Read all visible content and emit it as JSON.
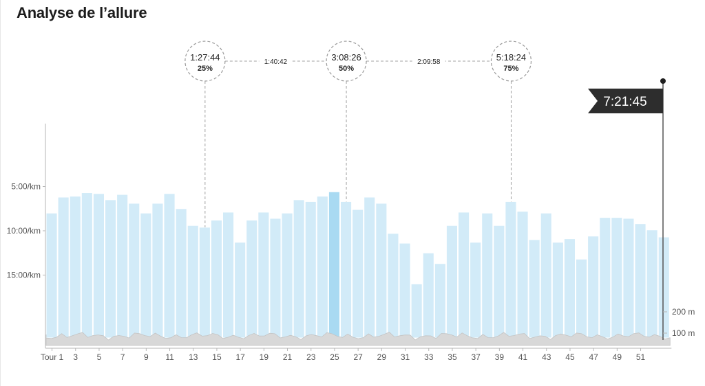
{
  "page": {
    "title": "Analyse de l’allure"
  },
  "chart_data": {
    "type": "bar",
    "title": "Analyse de l’allure",
    "ylabel": "",
    "xlabel": "",
    "y_ticks": [
      "5:00/km",
      "10:00/km",
      "15:00/km"
    ],
    "y_tick_values_min_per_km": [
      5,
      10,
      15
    ],
    "y_axis_inverted": true,
    "elevation_ticks": [
      "200 m",
      "100 m"
    ],
    "elevation_tick_values_m": [
      200,
      100
    ],
    "x_tick_labels": [
      "Tour 1",
      "3",
      "5",
      "7",
      "9",
      "11",
      "13",
      "15",
      "17",
      "19",
      "21",
      "23",
      "25",
      "27",
      "29",
      "31",
      "33",
      "35",
      "37",
      "39",
      "41",
      "43",
      "45",
      "47",
      "49",
      "51"
    ],
    "categories": [
      1,
      2,
      3,
      4,
      5,
      6,
      7,
      8,
      9,
      10,
      11,
      12,
      13,
      14,
      15,
      16,
      17,
      18,
      19,
      20,
      21,
      22,
      23,
      24,
      25,
      26,
      27,
      28,
      29,
      30,
      31,
      32,
      33,
      34,
      35,
      36,
      37,
      38,
      39,
      40,
      41,
      42,
      43,
      44,
      45,
      46,
      47,
      48,
      49,
      50,
      51,
      52,
      53
    ],
    "pace_min_per_km": [
      8.0,
      6.2,
      6.1,
      5.7,
      5.8,
      6.5,
      5.9,
      6.9,
      8.0,
      6.9,
      5.8,
      7.5,
      9.4,
      9.6,
      8.8,
      7.9,
      11.3,
      8.8,
      7.9,
      8.6,
      8.0,
      6.5,
      6.7,
      6.1,
      5.6,
      6.7,
      7.6,
      6.2,
      6.9,
      10.3,
      11.4,
      16.0,
      12.5,
      13.7,
      9.4,
      7.9,
      11.3,
      8.0,
      9.4,
      6.7,
      7.8,
      11.0,
      8.0,
      11.3,
      10.9,
      13.2,
      10.6,
      8.5,
      8.5,
      8.6,
      9.2,
      9.9,
      10.7
    ],
    "highlighted_lap": 25,
    "grid": false,
    "milestones": [
      {
        "time": "1:27:44",
        "percent": "25%",
        "lap": 14
      },
      {
        "time": "3:08:26",
        "percent": "50%",
        "lap": 26
      },
      {
        "time": "5:18:24",
        "percent": "75%",
        "lap": 40
      }
    ],
    "splits": [
      "1:40:42",
      "2:09:58"
    ],
    "finish_time": "7:21:45",
    "colors": {
      "bar": "#d2ebf8",
      "bar_highlight": "#a9daf2",
      "bar_stroke": "#ffffff",
      "elevation": "#d8d8d8",
      "axis": "#b5b5b5",
      "flag": "#2d2d2d",
      "dashed": "#a0a0a0"
    }
  }
}
